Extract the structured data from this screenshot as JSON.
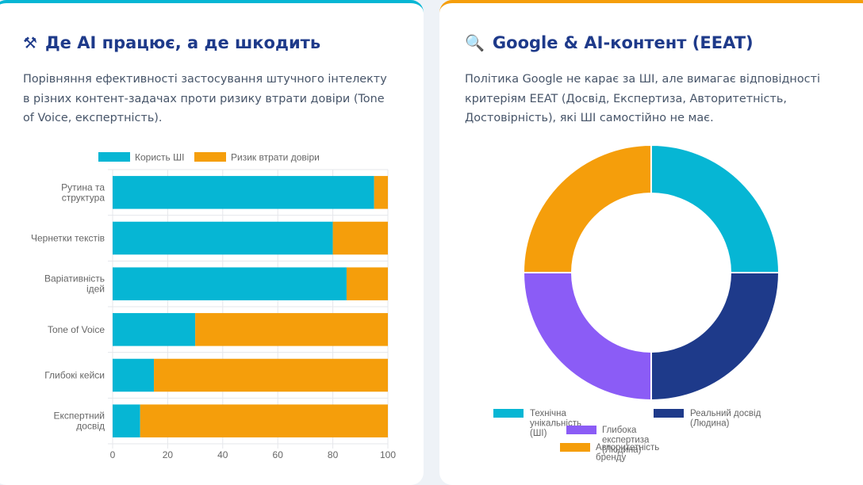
{
  "left_card": {
    "icon": "hammer-wrench-icon",
    "icon_glyph": "⚒",
    "title": "Де AI працює, а де шкодить",
    "description": "Порівняння ефективності застосування штучного інтелекту в різних контент-задачах проти ризику втрати довіри (Tone of Voice, експертність)."
  },
  "right_card": {
    "icon": "magnifier-icon",
    "icon_glyph": "🔍",
    "title": "Google & AI-контент (EEAT)",
    "description": "Політика Google не карає за ШІ, але вимагає відповідності критеріям EEAT (Досвід, Експертиза, Авторитетність, Достовірність), які ШІ самостійно не має."
  },
  "chart_data": [
    {
      "type": "bar",
      "orientation": "horizontal",
      "stacked": true,
      "categories": [
        [
          "Рутина та",
          "структура"
        ],
        [
          "Чернетки текстів"
        ],
        [
          "Варіативність",
          "ідей"
        ],
        [
          "Tone of Voice"
        ],
        [
          "Глибокі кейси"
        ],
        [
          "Експертний",
          "досвід"
        ]
      ],
      "series": [
        {
          "name": "Користь ШІ",
          "color": "#06b6d4",
          "values": [
            95,
            80,
            85,
            30,
            15,
            10
          ]
        },
        {
          "name": "Ризик втрати довіри",
          "color": "#f59e0b",
          "values": [
            5,
            20,
            15,
            70,
            85,
            90
          ]
        }
      ],
      "xlim": [
        0,
        100
      ],
      "xticks": [
        0,
        20,
        40,
        60,
        80,
        100
      ],
      "legend": "top",
      "grid": true
    },
    {
      "type": "pie",
      "variant": "doughnut",
      "labels": [
        "Технічна унікальність (ШІ)",
        "Реальний досвід (Людина)",
        "Глибока експертиза (Людина)",
        "Авторитетність бренду (Людина)"
      ],
      "values": [
        25,
        25,
        25,
        25
      ],
      "colors": [
        "#06b6d4",
        "#1e3a8a",
        "#8b5cf6",
        "#f59e0b"
      ],
      "legend": "bottom"
    }
  ]
}
